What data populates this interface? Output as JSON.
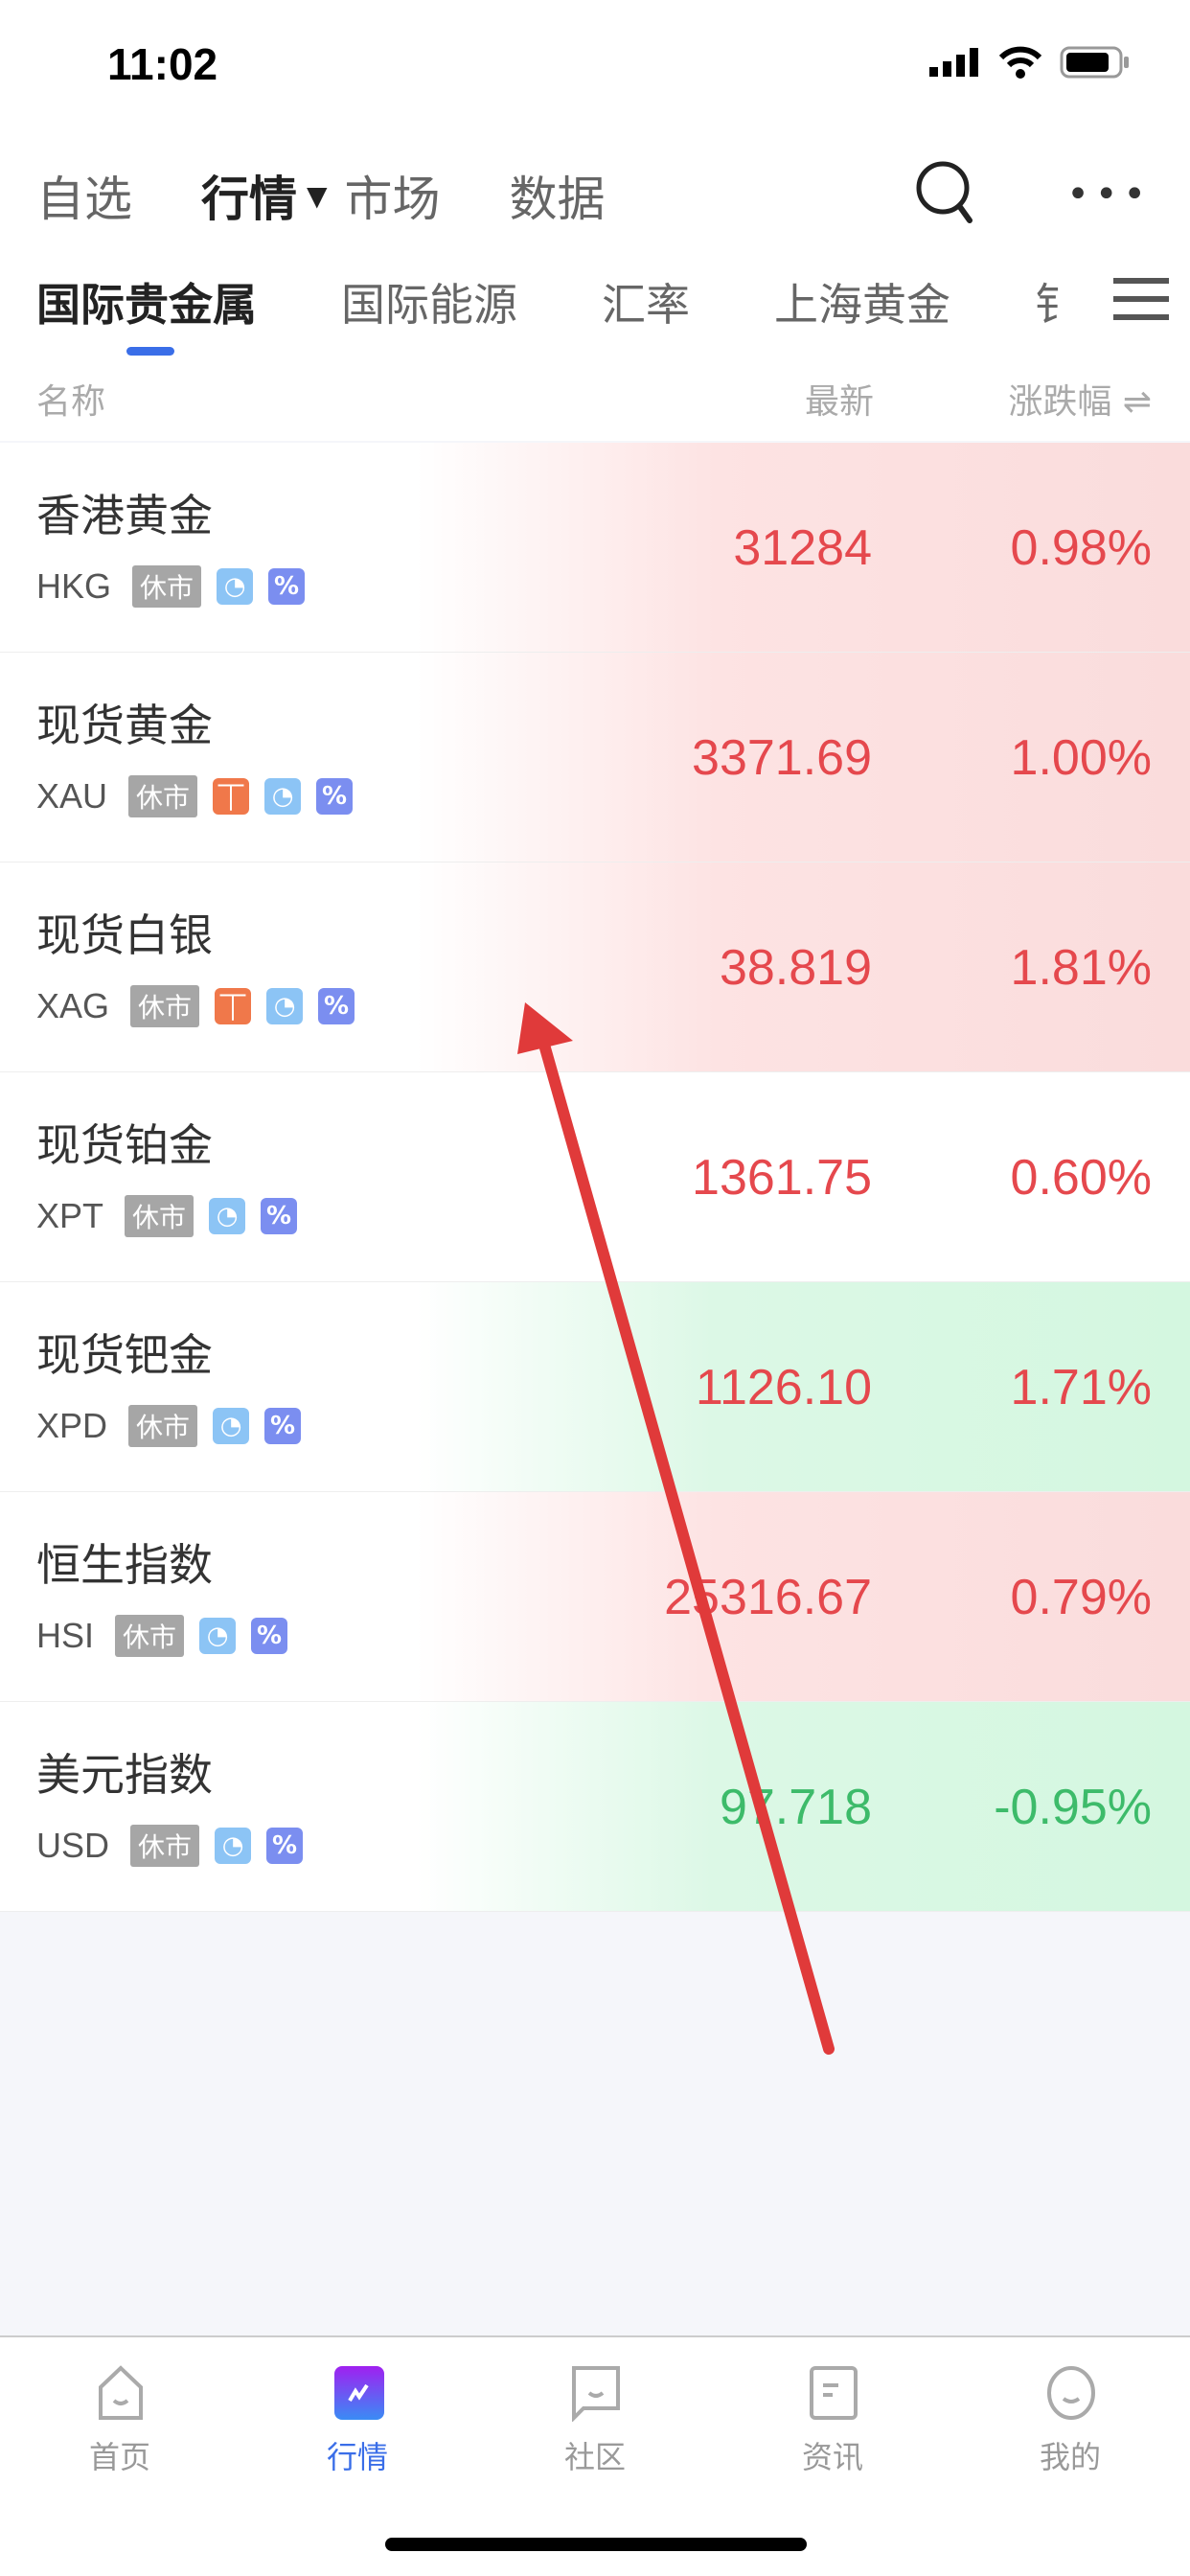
{
  "status": {
    "time": "11:02"
  },
  "topnav": {
    "items": [
      "自选",
      "行情",
      "市场",
      "数据"
    ],
    "active": "行情"
  },
  "tabs": [
    "国际贵金属",
    "国际能源",
    "汇率",
    "上海黄金",
    "钅"
  ],
  "columns": {
    "name": "名称",
    "last": "最新",
    "change": "涨跌幅"
  },
  "rows": [
    {
      "name": "香港黄金",
      "code": "HKG",
      "tag": "休市",
      "icons": [
        "pie",
        "percent"
      ],
      "last": "31284",
      "change": "0.98%",
      "trend": "up"
    },
    {
      "name": "现货黄金",
      "code": "XAU",
      "tag": "休市",
      "icons": [
        "lighthouse",
        "pie",
        "percent"
      ],
      "last": "3371.69",
      "change": "1.00%",
      "trend": "up"
    },
    {
      "name": "现货白银",
      "code": "XAG",
      "tag": "休市",
      "icons": [
        "lighthouse",
        "pie",
        "percent"
      ],
      "last": "38.819",
      "change": "1.81%",
      "trend": "up"
    },
    {
      "name": "现货铂金",
      "code": "XPT",
      "tag": "休市",
      "icons": [
        "pie",
        "percent"
      ],
      "last": "1361.75",
      "change": "0.60%",
      "trend": "flat"
    },
    {
      "name": "现货钯金",
      "code": "XPD",
      "tag": "休市",
      "icons": [
        "pie",
        "percent"
      ],
      "last": "1126.10",
      "change": "1.71%",
      "trend": "down"
    },
    {
      "name": "恒生指数",
      "code": "HSI",
      "tag": "休市",
      "icons": [
        "pie",
        "percent"
      ],
      "last": "25316.67",
      "change": "0.79%",
      "trend": "up"
    },
    {
      "name": "美元指数",
      "code": "USD",
      "tag": "休市",
      "icons": [
        "pie",
        "percent"
      ],
      "last": "97.718",
      "change": "-0.95%",
      "trend": "down"
    }
  ],
  "bottomnav": [
    {
      "label": "首页"
    },
    {
      "label": "行情"
    },
    {
      "label": "社区"
    },
    {
      "label": "资讯"
    },
    {
      "label": "我的"
    }
  ],
  "colors": {
    "up": "#e5484d",
    "down": "#3dbb6a",
    "accent": "#3a6ee8",
    "annotation": "#e03a3a"
  }
}
